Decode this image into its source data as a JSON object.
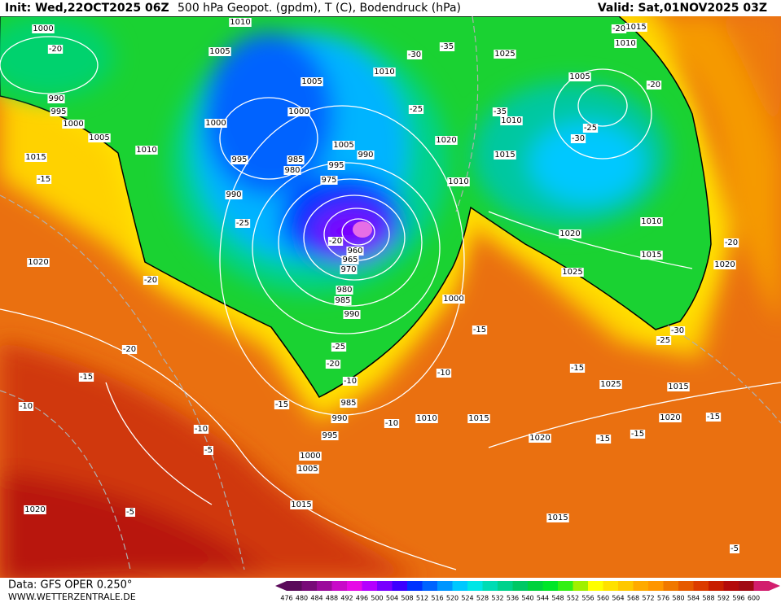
{
  "header": {
    "init": "Init: Wed,22OCT2025 06Z",
    "title": "500 hPa Geopot. (gpdm), T (C), Bodendruck (hPa)",
    "valid": "Valid: Sat,01NOV2025 03Z"
  },
  "footer": {
    "source": "Data: GFS OPER 0.250°",
    "site": "WWW.WETTERZENTRALE.DE"
  },
  "colorbar": {
    "values": [
      476,
      480,
      484,
      488,
      492,
      496,
      500,
      504,
      508,
      512,
      516,
      520,
      524,
      528,
      532,
      536,
      540,
      544,
      548,
      552,
      556,
      560,
      564,
      568,
      572,
      576,
      580,
      584,
      588,
      592,
      596,
      600
    ],
    "colors": [
      "#5a0a5a",
      "#780a78",
      "#9b0a9b",
      "#c80ac8",
      "#e60ae6",
      "#b400ff",
      "#7800ff",
      "#3c00ff",
      "#0032ff",
      "#0064ff",
      "#0096ff",
      "#00c8ff",
      "#00e6e6",
      "#00dcb4",
      "#00d28c",
      "#00c864",
      "#00d23c",
      "#00e628",
      "#32f014",
      "#a0f000",
      "#ffff00",
      "#ffe100",
      "#ffc800",
      "#ffaa00",
      "#ff9600",
      "#f07800",
      "#e65a00",
      "#dc3c00",
      "#c81e00",
      "#b40a0a",
      "#a00a14",
      "#d21e6e"
    ]
  },
  "map": {
    "pressure_labels": [
      1010,
      1005,
      1005,
      1010,
      1000,
      1000,
      1005,
      990,
      985,
      980,
      995,
      995,
      975,
      990,
      960,
      965,
      970,
      980,
      985,
      990,
      1000,
      1020,
      1025,
      1010,
      1015,
      1010,
      1005,
      1015,
      1010,
      1020,
      1025,
      1010,
      1015,
      1020,
      1025,
      1015,
      1020,
      1020,
      1015,
      1010,
      985,
      990,
      995,
      1000,
      1005,
      1015,
      1020,
      1020,
      1015,
      1005,
      1000,
      995,
      990,
      1000,
      1010,
      1015
    ],
    "temperature_labels": [
      -20,
      -15,
      -20,
      -20,
      -15,
      -10,
      -10,
      -5,
      -5,
      -25,
      -20,
      -25,
      -20,
      -10,
      -15,
      -10,
      -10,
      -15,
      -30,
      -35,
      -25,
      -35,
      -30,
      -25,
      -20,
      -20,
      -20,
      -25,
      -30,
      -15,
      -15,
      -15,
      -15,
      -5
    ]
  }
}
